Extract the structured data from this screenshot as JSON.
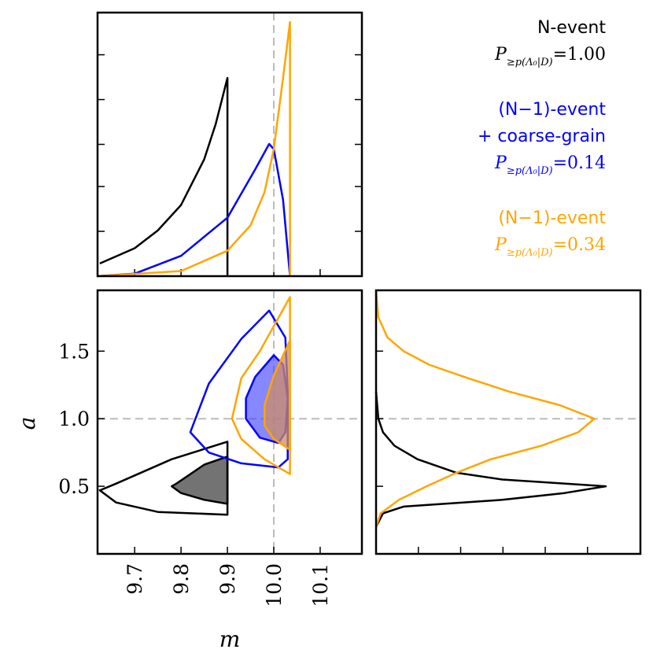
{
  "chart_data": {
    "type": "corner-plot",
    "parameters": [
      "m",
      "a"
    ],
    "xlabel": "m",
    "ylabel": "a",
    "xlim": [
      9.62,
      10.19
    ],
    "ylim": [
      0.0,
      1.95
    ],
    "xticks": [
      9.7,
      9.8,
      9.9,
      10.0,
      10.1
    ],
    "xtick_labels": [
      "9.7",
      "9.8",
      "9.9",
      "10.0",
      "10.1"
    ],
    "yticks": [
      0.5,
      1.0,
      1.5
    ],
    "ytick_labels": [
      "0.5",
      "1.0",
      "1.5"
    ],
    "truth": {
      "m": 10.0,
      "a": 1.0
    },
    "series": [
      {
        "id": "n",
        "name": "N-event",
        "color": "#000000",
        "probability": "1.00",
        "m_marginal": [
          [
            9.625,
            0.05
          ],
          [
            9.7,
            0.11
          ],
          [
            9.75,
            0.18
          ],
          [
            9.8,
            0.28
          ],
          [
            9.85,
            0.46
          ],
          [
            9.875,
            0.6
          ],
          [
            9.9,
            0.78
          ],
          [
            9.9,
            0.0
          ]
        ],
        "a_marginal": [
          [
            0.2,
            0.0
          ],
          [
            0.3,
            0.03
          ],
          [
            0.35,
            0.12
          ],
          [
            0.4,
            0.55
          ],
          [
            0.45,
            0.82
          ],
          [
            0.5,
            1.0
          ],
          [
            0.55,
            0.55
          ],
          [
            0.6,
            0.35
          ],
          [
            0.7,
            0.18
          ],
          [
            0.8,
            0.08
          ],
          [
            0.9,
            0.03
          ],
          [
            1.0,
            0.01
          ],
          [
            1.2,
            0.0
          ]
        ],
        "contour_95": [
          [
            9.9,
            0.29
          ],
          [
            9.9,
            0.83
          ],
          [
            9.78,
            0.7
          ],
          [
            9.66,
            0.52
          ],
          [
            9.625,
            0.47
          ],
          [
            9.66,
            0.38
          ],
          [
            9.75,
            0.31
          ],
          [
            9.9,
            0.29
          ]
        ],
        "contour_68": [
          [
            9.9,
            0.37
          ],
          [
            9.9,
            0.72
          ],
          [
            9.85,
            0.66
          ],
          [
            9.79,
            0.52
          ],
          [
            9.78,
            0.5
          ],
          [
            9.8,
            0.45
          ],
          [
            9.85,
            0.4
          ],
          [
            9.9,
            0.37
          ]
        ]
      },
      {
        "id": "coarse",
        "name_lines": [
          "(N−1)-event",
          "+ coarse-grain"
        ],
        "color": "#0000ff",
        "probability": "0.14",
        "m_marginal": [
          [
            9.62,
            0.0
          ],
          [
            9.7,
            0.01
          ],
          [
            9.8,
            0.08
          ],
          [
            9.9,
            0.23
          ],
          [
            9.96,
            0.42
          ],
          [
            9.99,
            0.52
          ],
          [
            10.0,
            0.5
          ],
          [
            10.02,
            0.3
          ],
          [
            10.035,
            0.0
          ]
        ],
        "contour_95": [
          [
            9.99,
            1.8
          ],
          [
            9.93,
            1.59
          ],
          [
            9.86,
            1.26
          ],
          [
            9.82,
            0.9
          ],
          [
            9.86,
            0.75
          ],
          [
            9.93,
            0.67
          ],
          [
            10.01,
            0.64
          ],
          [
            10.03,
            0.7
          ],
          [
            10.03,
            1.2
          ],
          [
            10.025,
            1.6
          ],
          [
            9.99,
            1.8
          ]
        ],
        "contour_68": [
          [
            10.0,
            1.47
          ],
          [
            9.96,
            1.31
          ],
          [
            9.94,
            1.15
          ],
          [
            9.94,
            1.0
          ],
          [
            9.97,
            0.86
          ],
          [
            10.01,
            0.82
          ],
          [
            10.025,
            0.9
          ],
          [
            10.03,
            1.15
          ],
          [
            10.02,
            1.4
          ],
          [
            10.0,
            1.47
          ]
        ]
      },
      {
        "id": "nm1",
        "name": "(N−1)-event",
        "color": "#ffa500",
        "probability": "0.34",
        "m_marginal": [
          [
            9.62,
            0.0
          ],
          [
            9.8,
            0.02
          ],
          [
            9.9,
            0.1
          ],
          [
            9.95,
            0.2
          ],
          [
            9.98,
            0.33
          ],
          [
            10.0,
            0.5
          ],
          [
            10.02,
            0.78
          ],
          [
            10.035,
            1.0
          ],
          [
            10.035,
            0.0
          ]
        ],
        "a_marginal": [
          [
            0.2,
            0.0
          ],
          [
            0.3,
            0.02
          ],
          [
            0.4,
            0.1
          ],
          [
            0.5,
            0.22
          ],
          [
            0.6,
            0.35
          ],
          [
            0.7,
            0.5
          ],
          [
            0.8,
            0.72
          ],
          [
            0.9,
            0.88
          ],
          [
            1.0,
            0.95
          ],
          [
            1.1,
            0.8
          ],
          [
            1.2,
            0.58
          ],
          [
            1.3,
            0.4
          ],
          [
            1.4,
            0.23
          ],
          [
            1.5,
            0.12
          ],
          [
            1.6,
            0.05
          ],
          [
            1.75,
            0.01
          ],
          [
            1.95,
            0.0
          ]
        ],
        "contour_95": [
          [
            10.035,
            1.9
          ],
          [
            9.97,
            1.5
          ],
          [
            9.93,
            1.3
          ],
          [
            9.91,
            1.0
          ],
          [
            9.93,
            0.85
          ],
          [
            9.98,
            0.7
          ],
          [
            10.035,
            0.59
          ],
          [
            10.035,
            1.9
          ]
        ],
        "contour_68": [
          [
            10.035,
            1.58
          ],
          [
            10.0,
            1.32
          ],
          [
            9.98,
            1.1
          ],
          [
            9.98,
            0.95
          ],
          [
            10.0,
            0.85
          ],
          [
            10.035,
            0.77
          ],
          [
            10.035,
            1.58
          ]
        ]
      }
    ]
  },
  "legend": [
    {
      "lines": [
        "N-event"
      ],
      "p_label": "P",
      "p_sub": "≥p(Λ₀|D)",
      "p_value": "=1.00",
      "color": "#000000"
    },
    {
      "lines": [
        "(N−1)-event",
        "+ coarse-grain"
      ],
      "p_label": "P",
      "p_sub": "≥p(Λ₀|D)",
      "p_value": "=0.14",
      "color": "#0000ff"
    },
    {
      "lines": [
        "(N−1)-event"
      ],
      "p_label": "P",
      "p_sub": "≥p(Λ₀|D)",
      "p_value": "=0.34",
      "color": "#ffa500"
    }
  ]
}
